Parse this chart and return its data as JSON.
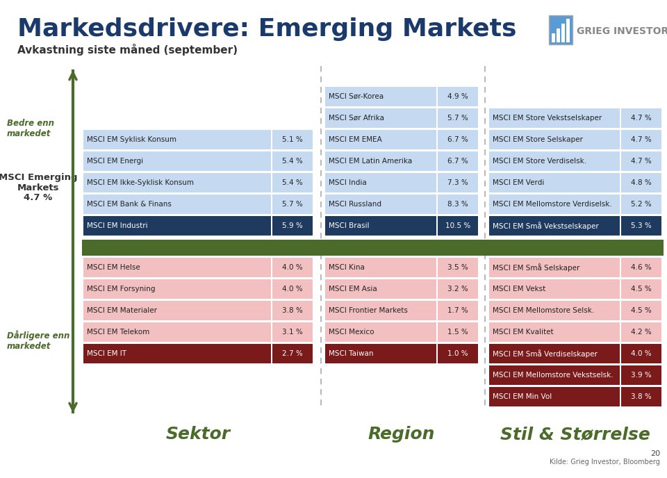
{
  "title": "Markedsdrivere: Emerging Markets",
  "subtitle": "Avkastning siste måned (september)",
  "bg_color": "#ffffff",
  "title_color": "#1a3a6b",
  "subtitle_color": "#333333",
  "arrow_color": "#4a6b2a",
  "label_better": "Bedre enn\nmarkedet",
  "label_worse": "Dårligere enn\nmarkedet",
  "label_color": "#4a6b2a",
  "em_label_line1": "MSCI Emerging",
  "em_label_line2": "Markets",
  "em_label_line3": "4.7 %",
  "em_color": "#333333",
  "green_bar_color": "#4a6b2a",
  "category_labels": [
    "Sektor",
    "Region",
    "Stil & Størrelse"
  ],
  "category_label_color": "#4a6b2a",
  "dark_blue": "#1e3a5f",
  "light_blue": "#c5d9f1",
  "light_pink": "#f2c0c0",
  "dark_red": "#7b1a1a",
  "footer_text": "Kilde: Grieg Investor, Bloomberg",
  "page_num": "20",
  "grieg_text": "GRIEG INVESTOR",
  "sektor_above": [
    [
      "MSCI EM Industri",
      "5.9 %",
      true
    ],
    [
      "MSCI EM Bank & Finans",
      "5.7 %",
      false
    ],
    [
      "MSCI EM Ikke-Syklisk Konsum",
      "5.4 %",
      false
    ],
    [
      "MSCI EM Energi",
      "5.4 %",
      false
    ],
    [
      "MSCI EM Syklisk Konsum",
      "5.1 %",
      false
    ]
  ],
  "region_above": [
    [
      "MSCI Brasil",
      "10.5 %",
      true
    ],
    [
      "MSCI Russland",
      "8.3 %",
      false
    ],
    [
      "MSCI India",
      "7.3 %",
      false
    ],
    [
      "MSCI EM Latin Amerika",
      "6.7 %",
      false
    ],
    [
      "MSCI EM EMEA",
      "6.7 %",
      false
    ],
    [
      "MSCI Sør Afrika",
      "5.7 %",
      false
    ],
    [
      "MSCI Sør-Korea",
      "4.9 %",
      false
    ]
  ],
  "stil_above": [
    [
      "MSCI EM Små Vekstselskaper",
      "5.3 %",
      true
    ],
    [
      "MSCI EM Mellomstore Verdiselsk.",
      "5.2 %",
      false
    ],
    [
      "MSCI EM Verdi",
      "4.8 %",
      false
    ],
    [
      "MSCI EM Store Verdiselsk.",
      "4.7 %",
      false
    ],
    [
      "MSCI EM Store Selskaper",
      "4.7 %",
      false
    ],
    [
      "MSCI EM Store Vekstselskaper",
      "4.7 %",
      false
    ]
  ],
  "sektor_below": [
    [
      "MSCI EM Helse",
      "4.0 %",
      false
    ],
    [
      "MSCI EM Forsyning",
      "4.0 %",
      false
    ],
    [
      "MSCI EM Materialer",
      "3.8 %",
      false
    ],
    [
      "MSCI EM Telekom",
      "3.1 %",
      false
    ],
    [
      "MSCI EM IT",
      "2.7 %",
      true
    ]
  ],
  "region_below": [
    [
      "MSCI Kina",
      "3.5 %",
      false
    ],
    [
      "MSCI EM Asia",
      "3.2 %",
      false
    ],
    [
      "MSCI Frontier Markets",
      "1.7 %",
      false
    ],
    [
      "MSCI Mexico",
      "1.5 %",
      false
    ],
    [
      "MSCI Taiwan",
      "1.0 %",
      true
    ]
  ],
  "stil_below": [
    [
      "MSCI EM Små Selskaper",
      "4.6 %",
      false
    ],
    [
      "MSCI EM Vekst",
      "4.5 %",
      false
    ],
    [
      "MSCI EM Mellomstore Selsk.",
      "4.5 %",
      false
    ],
    [
      "MSCI EM Kvalitet",
      "4.2 %",
      false
    ],
    [
      "MSCI EM Små Verdiselskaper",
      "4.0 %",
      true
    ],
    [
      "MSCI EM Mellomstore Vekstselsk.",
      "3.9 %",
      true
    ],
    [
      "MSCI EM Min Vol",
      "3.8 %",
      true
    ]
  ]
}
